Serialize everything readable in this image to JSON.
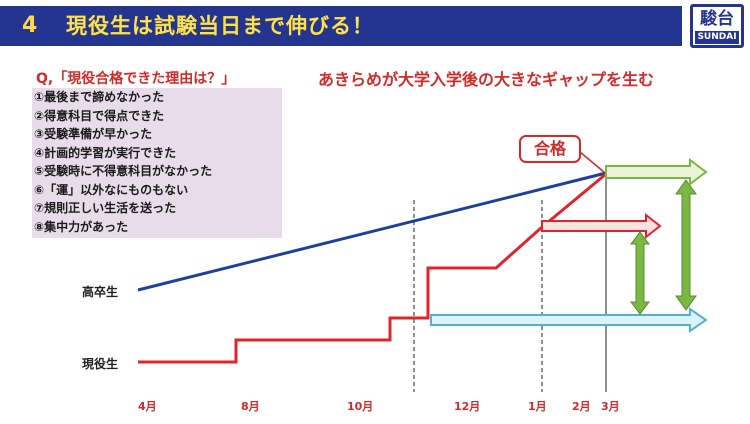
{
  "header": {
    "number": "4",
    "title": "現役生は試験当日まで伸びる！"
  },
  "logo": {
    "kanji": "駿台",
    "text": "SUNDAI"
  },
  "question": {
    "title": "Q,「現役合格できた理由は？」",
    "reasons": [
      "①最後まで諦めなかった",
      "②得意科目で得点できた",
      "③受験準備が早かった",
      "④計画的学習が実行できた",
      "⑤受験時に不得意科目がなかった",
      "⑥「運」以外なにものもない",
      "⑦規則正しい生活を送った",
      "⑧集中力があった"
    ]
  },
  "chart": {
    "subtitle": "あきらめが大学入学後の大きなギャップを生む",
    "pass_label": "合格",
    "line_labels": {
      "graduate": "高卒生",
      "current": "現役生"
    },
    "months": [
      "4月",
      "8月",
      "10月",
      "12月",
      "1月",
      "2月",
      "3月"
    ]
  },
  "colors": {
    "header_bg": "#24358f",
    "accent_red": "#d42a2a",
    "blue_line": "#1f3f9a",
    "green": "#79b843",
    "cyan": "#4fb3d9"
  }
}
